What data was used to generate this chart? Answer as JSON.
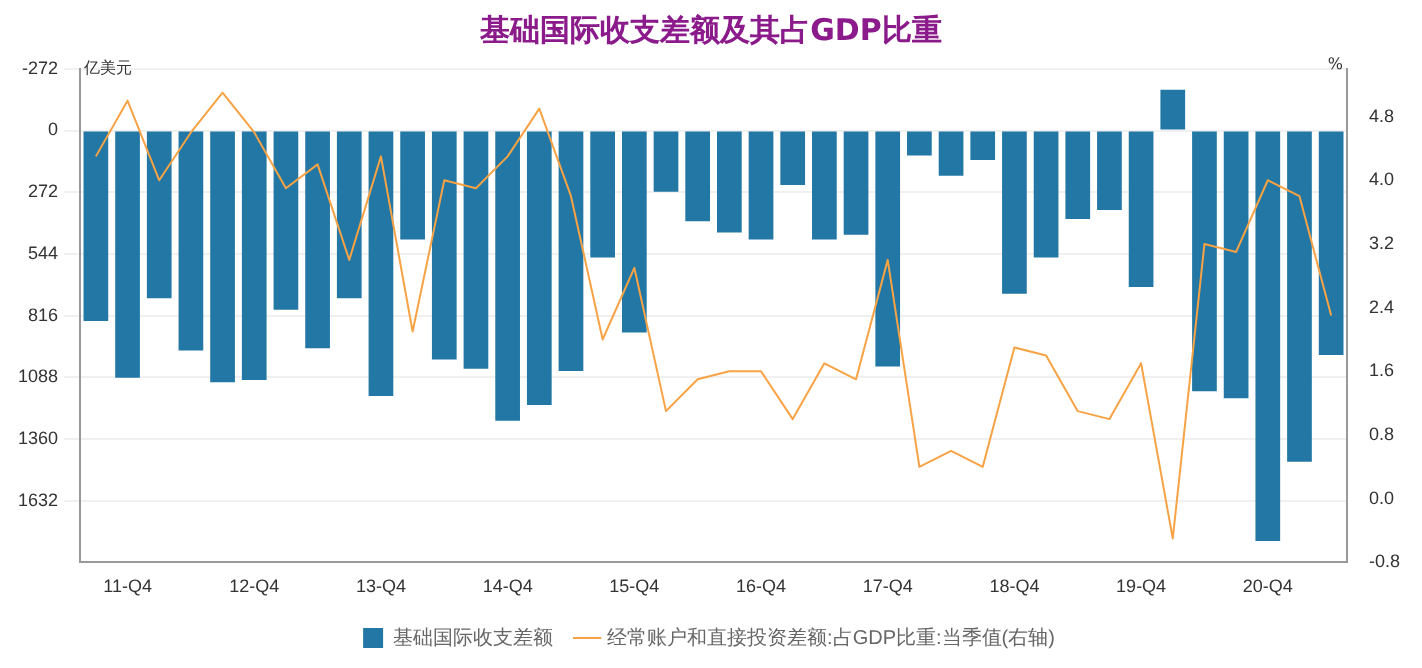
{
  "chart_data": {
    "type": "bar",
    "title": "基础国际收支差额及其占GDP比重",
    "ylabel": "亿美元",
    "y2label": "%",
    "categories": [
      null,
      "11-Q4",
      null,
      null,
      null,
      "12-Q4",
      null,
      null,
      null,
      "13-Q4",
      null,
      null,
      null,
      "14-Q4",
      null,
      null,
      null,
      "15-Q4",
      null,
      null,
      null,
      "16-Q4",
      null,
      null,
      null,
      "17-Q4",
      null,
      null,
      null,
      "18-Q4",
      null,
      null,
      null,
      "19-Q4",
      null,
      null,
      null,
      "20-Q4",
      null,
      null
    ],
    "series": [
      {
        "name": "基础国际收支差额",
        "color": "#2277a4",
        "values": [
          840,
          1090,
          740,
          970,
          1110,
          1100,
          790,
          960,
          740,
          1170,
          480,
          1010,
          1050,
          1280,
          1210,
          1060,
          560,
          890,
          270,
          400,
          450,
          480,
          240,
          480,
          460,
          1040,
          110,
          200,
          130,
          720,
          560,
          390,
          350,
          690,
          -180,
          1150,
          1180,
          1810,
          1460,
          990
        ]
      },
      {
        "name": "经常账户和直接投资差额:占GDP比重:当季值(右轴)",
        "type": "line",
        "axis": "y2",
        "color": "#f7a345",
        "values": [
          4.3,
          5.0,
          4.0,
          4.6,
          5.1,
          4.6,
          3.9,
          4.2,
          3.0,
          4.3,
          2.1,
          4.0,
          3.9,
          4.3,
          4.9,
          3.8,
          2.0,
          2.9,
          1.1,
          1.5,
          1.6,
          1.6,
          1.0,
          1.7,
          1.5,
          3.0,
          0.4,
          0.6,
          0.4,
          1.9,
          1.8,
          1.1,
          1.0,
          1.7,
          -0.5,
          3.2,
          3.1,
          4.0,
          3.8,
          2.3
        ]
      }
    ],
    "ylim": [
      1904,
      -272
    ],
    "yticks": [
      -272,
      0,
      272,
      544,
      816,
      1088,
      1360,
      1632
    ],
    "y2lim": [
      -0.8,
      5.4
    ],
    "y2ticks": [
      {
        "value": -0.8,
        "label": "-0.8"
      },
      {
        "value": 0,
        "label": "0.0"
      },
      {
        "value": 0.8,
        "label": "0.8"
      },
      {
        "value": 1.6,
        "label": "1.6"
      },
      {
        "value": 2.4,
        "label": "2.4"
      },
      {
        "value": 3.2,
        "label": "3.2"
      },
      {
        "value": 4,
        "label": "4.0"
      },
      {
        "value": 4.8,
        "label": "4.8"
      }
    ],
    "grid": "y",
    "legend": "bottom",
    "marker": "none",
    "line_style": "solid"
  }
}
